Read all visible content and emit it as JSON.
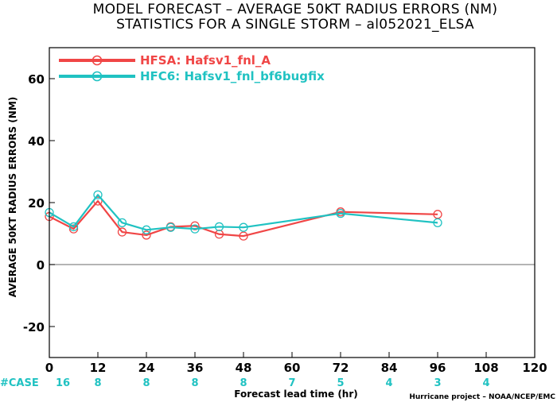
{
  "chart_data": {
    "type": "line",
    "title": "MODEL FORECAST – AVERAGE 50KT RADIUS ERRORS (NM)",
    "subtitle": "STATISTICS FOR A SINGLE STORM – al052021_ELSA",
    "xlabel": "Forecast lead time (hr)",
    "ylabel": "AVERAGE 50KT RADIUS ERRORS (NM)",
    "xlim": [
      0,
      120
    ],
    "ylim": [
      -30,
      70
    ],
    "xticks": [
      0,
      12,
      24,
      36,
      48,
      60,
      72,
      84,
      96,
      108,
      120
    ],
    "yticks": [
      -20,
      0,
      20,
      40,
      60
    ],
    "zero_line": true,
    "legend_position": "top-left",
    "series": [
      {
        "name": "HFSA: Hafsv1_fnl_A",
        "color": "#f04646",
        "x": [
          0,
          6,
          12,
          18,
          24,
          30,
          36,
          42,
          48,
          72,
          96
        ],
        "y": [
          15.5,
          11.5,
          20.5,
          10.5,
          9.5,
          12.2,
          12.5,
          9.8,
          9.2,
          17.0,
          16.2
        ]
      },
      {
        "name": "HFC6: Hafsv1_fnl_bf6bugfix",
        "color": "#20c2c2",
        "x": [
          0,
          6,
          12,
          18,
          24,
          30,
          36,
          42,
          48,
          72,
          96
        ],
        "y": [
          16.8,
          12.2,
          22.5,
          13.5,
          11.2,
          12.0,
          11.5,
          12.2,
          12.0,
          16.5,
          13.5
        ]
      }
    ],
    "case_label": "#CASE",
    "case_counts": [
      {
        "x": 0,
        "count": "16"
      },
      {
        "x": 12,
        "count": "8"
      },
      {
        "x": 24,
        "count": "8"
      },
      {
        "x": 36,
        "count": "8"
      },
      {
        "x": 48,
        "count": "8"
      },
      {
        "x": 60,
        "count": "7"
      },
      {
        "x": 72,
        "count": "5"
      },
      {
        "x": 84,
        "count": "4"
      },
      {
        "x": 96,
        "count": "3"
      },
      {
        "x": 108,
        "count": "4"
      }
    ],
    "credit": "Hurricane project – NOAA/NCEP/EMC",
    "axis_color": "#000000",
    "zero_line_color": "#888888"
  }
}
